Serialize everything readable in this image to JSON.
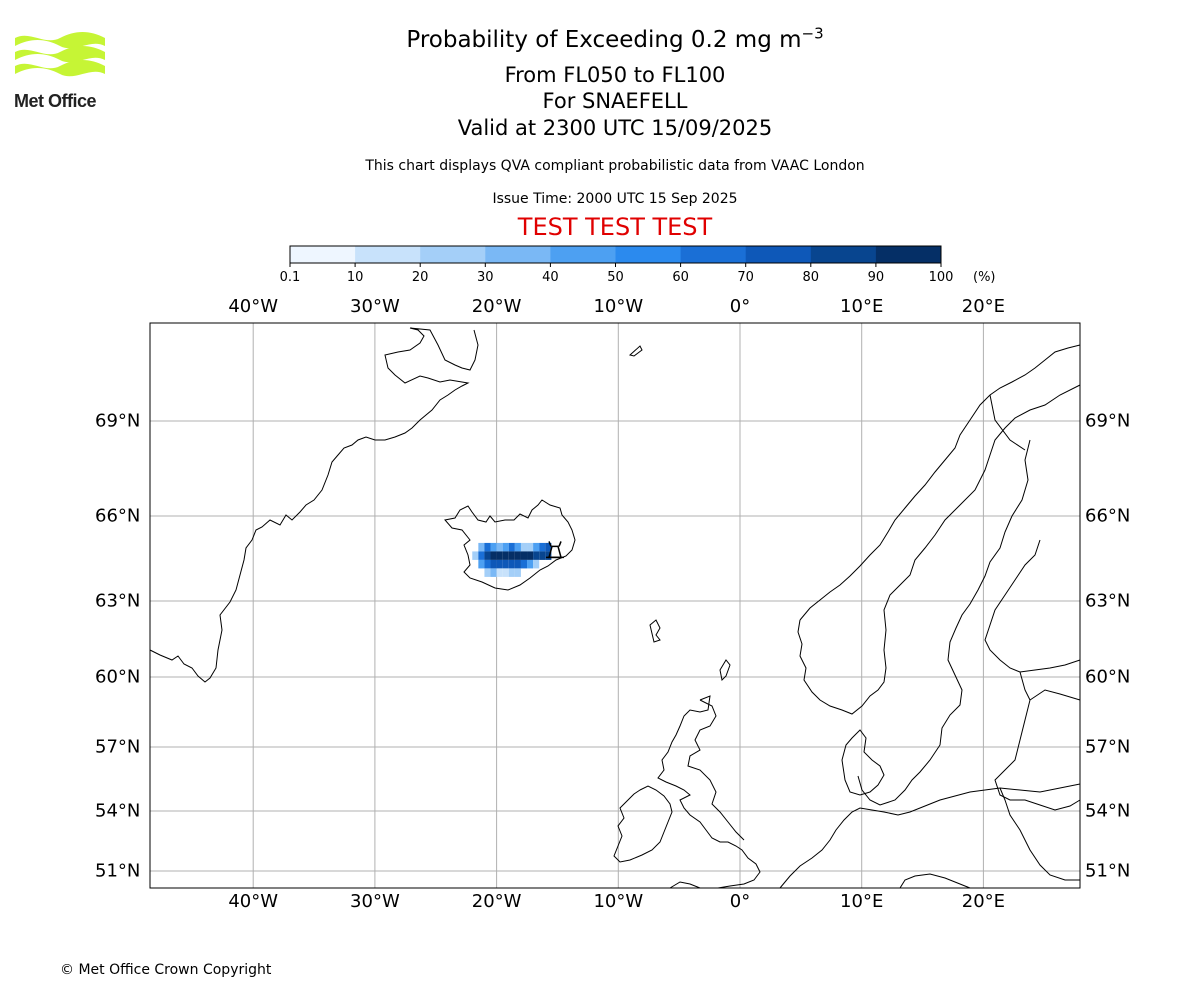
{
  "logo": {
    "text": "Met Office",
    "color": "#c6f535"
  },
  "title": {
    "main": "Probability of Exceeding 0.2 mg m",
    "main_superscript": "−3",
    "line2": "From FL050 to FL100",
    "line3": "For SNAEFELL",
    "line4": "Valid at 2300 UTC 15/09/2025"
  },
  "subtitle": "This chart displays QVA compliant probabilistic data from VAAC London",
  "issue_time": "Issue Time: 2000 UTC 15 Sep 2025",
  "test_banner": {
    "text": "TEST TEST TEST",
    "color": "#e00000"
  },
  "colorbar": {
    "ticks": [
      "0.1",
      "10",
      "20",
      "30",
      "40",
      "50",
      "60",
      "70",
      "80",
      "90",
      "100"
    ],
    "unit": "(%)",
    "colors": [
      "#eef6ff",
      "#c8e2fb",
      "#a4cff8",
      "#7ab8f5",
      "#4da0f2",
      "#2b8aee",
      "#1a6fd6",
      "#0e58b8",
      "#08458f",
      "#052f66"
    ]
  },
  "map": {
    "projection": "Lambert-like (lat/lon grid)",
    "lon_labels": [
      "40°W",
      "30°W",
      "20°W",
      "10°W",
      "0°",
      "10°E",
      "20°E"
    ],
    "lat_labels": [
      "69°N",
      "66°N",
      "63°N",
      "60°N",
      "57°N",
      "54°N",
      "51°N"
    ],
    "volcano": "SNAEFELL",
    "ash_cells": [
      {
        "lon": -21.5,
        "lat": 64.9,
        "p": 30
      },
      {
        "lon": -21.0,
        "lat": 64.9,
        "p": 60
      },
      {
        "lon": -20.5,
        "lat": 64.9,
        "p": 40
      },
      {
        "lon": -20.0,
        "lat": 64.9,
        "p": 30
      },
      {
        "lon": -19.5,
        "lat": 64.9,
        "p": 40
      },
      {
        "lon": -19.0,
        "lat": 64.9,
        "p": 60
      },
      {
        "lon": -18.5,
        "lat": 64.9,
        "p": 40
      },
      {
        "lon": -18.0,
        "lat": 64.9,
        "p": 20
      },
      {
        "lon": -17.5,
        "lat": 64.9,
        "p": 20
      },
      {
        "lon": -17.0,
        "lat": 64.9,
        "p": 40
      },
      {
        "lon": -16.5,
        "lat": 64.9,
        "p": 60
      },
      {
        "lon": -16.0,
        "lat": 64.9,
        "p": 70
      },
      {
        "lon": -22.0,
        "lat": 64.6,
        "p": 20
      },
      {
        "lon": -21.5,
        "lat": 64.6,
        "p": 60
      },
      {
        "lon": -21.0,
        "lat": 64.6,
        "p": 80
      },
      {
        "lon": -20.5,
        "lat": 64.6,
        "p": 90
      },
      {
        "lon": -20.0,
        "lat": 64.6,
        "p": 90
      },
      {
        "lon": -19.5,
        "lat": 64.6,
        "p": 90
      },
      {
        "lon": -19.0,
        "lat": 64.6,
        "p": 90
      },
      {
        "lon": -18.5,
        "lat": 64.6,
        "p": 90
      },
      {
        "lon": -18.0,
        "lat": 64.6,
        "p": 90
      },
      {
        "lon": -17.5,
        "lat": 64.6,
        "p": 90
      },
      {
        "lon": -17.0,
        "lat": 64.6,
        "p": 80
      },
      {
        "lon": -16.5,
        "lat": 64.6,
        "p": 80
      },
      {
        "lon": -16.0,
        "lat": 64.6,
        "p": 80
      },
      {
        "lon": -21.5,
        "lat": 64.3,
        "p": 40
      },
      {
        "lon": -21.0,
        "lat": 64.3,
        "p": 60
      },
      {
        "lon": -20.5,
        "lat": 64.3,
        "p": 70
      },
      {
        "lon": -20.0,
        "lat": 64.3,
        "p": 70
      },
      {
        "lon": -19.5,
        "lat": 64.3,
        "p": 70
      },
      {
        "lon": -19.0,
        "lat": 64.3,
        "p": 70
      },
      {
        "lon": -18.5,
        "lat": 64.3,
        "p": 70
      },
      {
        "lon": -18.0,
        "lat": 64.3,
        "p": 60
      },
      {
        "lon": -17.5,
        "lat": 64.3,
        "p": 40
      },
      {
        "lon": -17.0,
        "lat": 64.3,
        "p": 20
      },
      {
        "lon": -21.0,
        "lat": 64.0,
        "p": 20
      },
      {
        "lon": -20.5,
        "lat": 64.0,
        "p": 30
      },
      {
        "lon": -20.0,
        "lat": 64.0,
        "p": 10
      },
      {
        "lon": -19.5,
        "lat": 64.0,
        "p": 10
      },
      {
        "lon": -19.0,
        "lat": 64.0,
        "p": 20
      },
      {
        "lon": -18.5,
        "lat": 64.0,
        "p": 20
      }
    ]
  },
  "copyright": "© Met Office Crown Copyright"
}
